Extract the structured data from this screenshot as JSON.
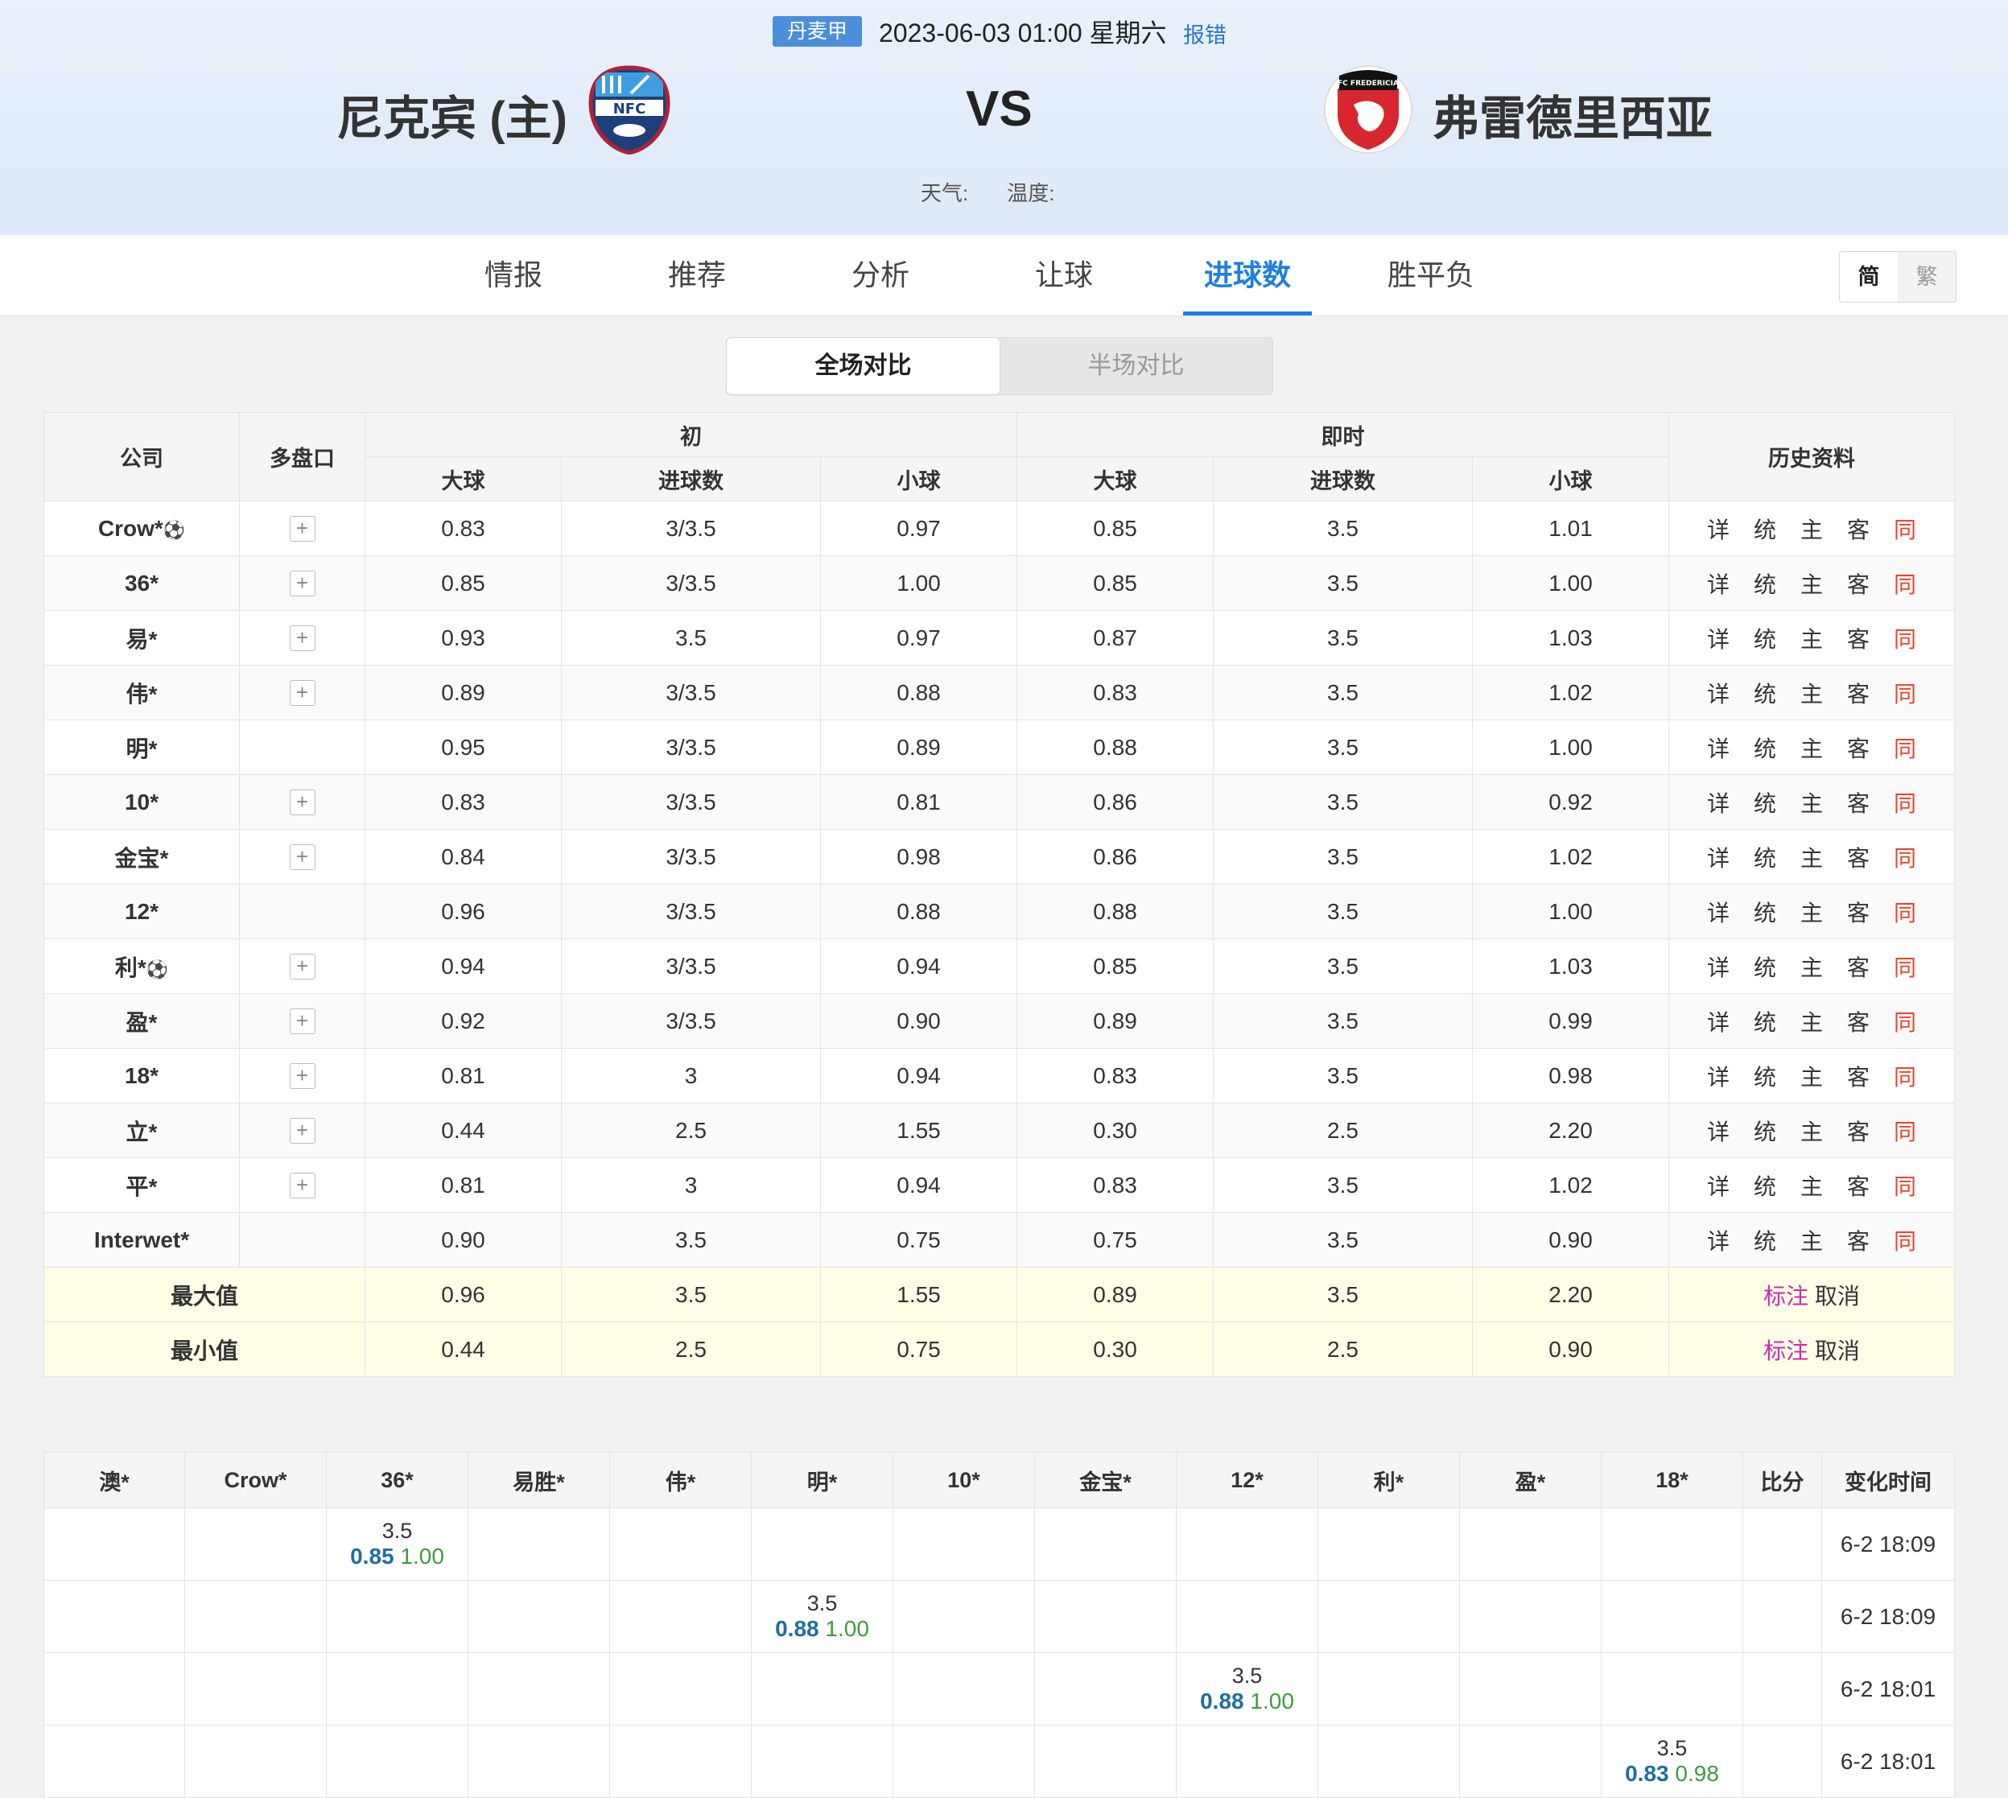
{
  "header": {
    "league": "丹麦甲",
    "datetime": "2023-06-03 01:00 星期六",
    "report_link": "报错",
    "home_team": "尼克宾 (主)",
    "away_team": "弗雷德里西亚",
    "vs": "VS",
    "weather_label": "天气:",
    "temp_label": "温度:",
    "home_logo_text": "NFC",
    "away_logo_text": "FC FREDERICIA"
  },
  "nav": {
    "tabs": [
      "情报",
      "推荐",
      "分析",
      "让球",
      "进球数",
      "胜平负"
    ],
    "active": "进球数",
    "lang_simp": "简",
    "lang_trad": "繁"
  },
  "compare": {
    "full": "全场对比",
    "half": "半场对比"
  },
  "odds": {
    "headers": {
      "company": "公司",
      "multi": "多盘口",
      "initial": "初",
      "live": "即时",
      "over": "大球",
      "goals": "进球数",
      "under": "小球",
      "history": "历史资料"
    },
    "history_links": [
      "详",
      "统",
      "主",
      "客",
      "同"
    ],
    "rows": [
      {
        "company": "Crow*",
        "ball": true,
        "plus": true,
        "i_over": "0.83",
        "i_line": "3/3.5",
        "i_under": "0.97",
        "l_over": "0.85",
        "l_line": "3.5",
        "l_under": "1.01"
      },
      {
        "company": "36*",
        "ball": false,
        "plus": true,
        "i_over": "0.85",
        "i_line": "3/3.5",
        "i_under": "1.00",
        "l_over": "0.85",
        "l_line": "3.5",
        "l_under": "1.00"
      },
      {
        "company": "易*",
        "ball": false,
        "plus": true,
        "i_over": "0.93",
        "i_line": "3.5",
        "i_under": "0.97",
        "l_over": "0.87",
        "l_line": "3.5",
        "l_under": "1.03"
      },
      {
        "company": "伟*",
        "ball": false,
        "plus": true,
        "i_over": "0.89",
        "i_line": "3/3.5",
        "i_under": "0.88",
        "l_over": "0.83",
        "l_line": "3.5",
        "l_under": "1.02"
      },
      {
        "company": "明*",
        "ball": false,
        "plus": false,
        "i_over": "0.95",
        "i_line": "3/3.5",
        "i_under": "0.89",
        "l_over": "0.88",
        "l_line": "3.5",
        "l_under": "1.00"
      },
      {
        "company": "10*",
        "ball": false,
        "plus": true,
        "i_over": "0.83",
        "i_line": "3/3.5",
        "i_under": "0.81",
        "l_over": "0.86",
        "l_line": "3.5",
        "l_under": "0.92"
      },
      {
        "company": "金宝*",
        "ball": false,
        "plus": true,
        "i_over": "0.84",
        "i_line": "3/3.5",
        "i_under": "0.98",
        "l_over": "0.86",
        "l_line": "3.5",
        "l_under": "1.02"
      },
      {
        "company": "12*",
        "ball": false,
        "plus": false,
        "i_over": "0.96",
        "i_line": "3/3.5",
        "i_under": "0.88",
        "l_over": "0.88",
        "l_line": "3.5",
        "l_under": "1.00"
      },
      {
        "company": "利*",
        "ball": true,
        "plus": true,
        "i_over": "0.94",
        "i_line": "3/3.5",
        "i_under": "0.94",
        "l_over": "0.85",
        "l_line": "3.5",
        "l_under": "1.03"
      },
      {
        "company": "盈*",
        "ball": false,
        "plus": true,
        "i_over": "0.92",
        "i_line": "3/3.5",
        "i_under": "0.90",
        "l_over": "0.89",
        "l_line": "3.5",
        "l_under": "0.99"
      },
      {
        "company": "18*",
        "ball": false,
        "plus": true,
        "i_over": "0.81",
        "i_line": "3",
        "i_under": "0.94",
        "l_over": "0.83",
        "l_line": "3.5",
        "l_under": "0.98"
      },
      {
        "company": "立*",
        "ball": false,
        "plus": true,
        "i_over": "0.44",
        "i_line": "2.5",
        "i_under": "1.55",
        "l_over": "0.30",
        "l_line": "2.5",
        "l_under": "2.20"
      },
      {
        "company": "平*",
        "ball": false,
        "plus": true,
        "i_over": "0.81",
        "i_line": "3",
        "i_under": "0.94",
        "l_over": "0.83",
        "l_line": "3.5",
        "l_under": "1.02"
      },
      {
        "company": "Interwet*",
        "ball": false,
        "plus": false,
        "i_over": "0.90",
        "i_line": "3.5",
        "i_under": "0.75",
        "l_over": "0.75",
        "l_line": "3.5",
        "l_under": "0.90"
      }
    ],
    "max": {
      "label": "最大值",
      "i_over": "0.96",
      "i_line": "3.5",
      "i_under": "1.55",
      "l_over": "0.89",
      "l_line": "3.5",
      "l_under": "2.20"
    },
    "min": {
      "label": "最小值",
      "i_over": "0.44",
      "i_line": "2.5",
      "i_under": "0.75",
      "l_over": "0.30",
      "l_line": "2.5",
      "l_under": "0.90"
    },
    "mark": "标注",
    "cancel": "取消"
  },
  "changes": {
    "headers": [
      "澳*",
      "Crow*",
      "36*",
      "易胜*",
      "伟*",
      "明*",
      "10*",
      "金宝*",
      "12*",
      "利*",
      "盈*",
      "18*",
      "比分",
      "变化时间"
    ],
    "rows": [
      {
        "col": 2,
        "line": "3.5",
        "over": "0.85",
        "under": "1.00",
        "time": "6-2 18:09"
      },
      {
        "col": 5,
        "line": "3.5",
        "over": "0.88",
        "under": "1.00",
        "time": "6-2 18:09"
      },
      {
        "col": 8,
        "line": "3.5",
        "over": "0.88",
        "under": "1.00",
        "time": "6-2 18:01"
      },
      {
        "col": 11,
        "line": "3.5",
        "over": "0.83",
        "under": "0.98",
        "time": "6-2 18:01"
      }
    ]
  },
  "colors": {
    "accent": "#1f7fe0",
    "league_badge": "#4a8fdb",
    "same_link": "#e8452c",
    "mark_link": "#cc2ab0",
    "stat_row_bg": "#fefee6"
  }
}
